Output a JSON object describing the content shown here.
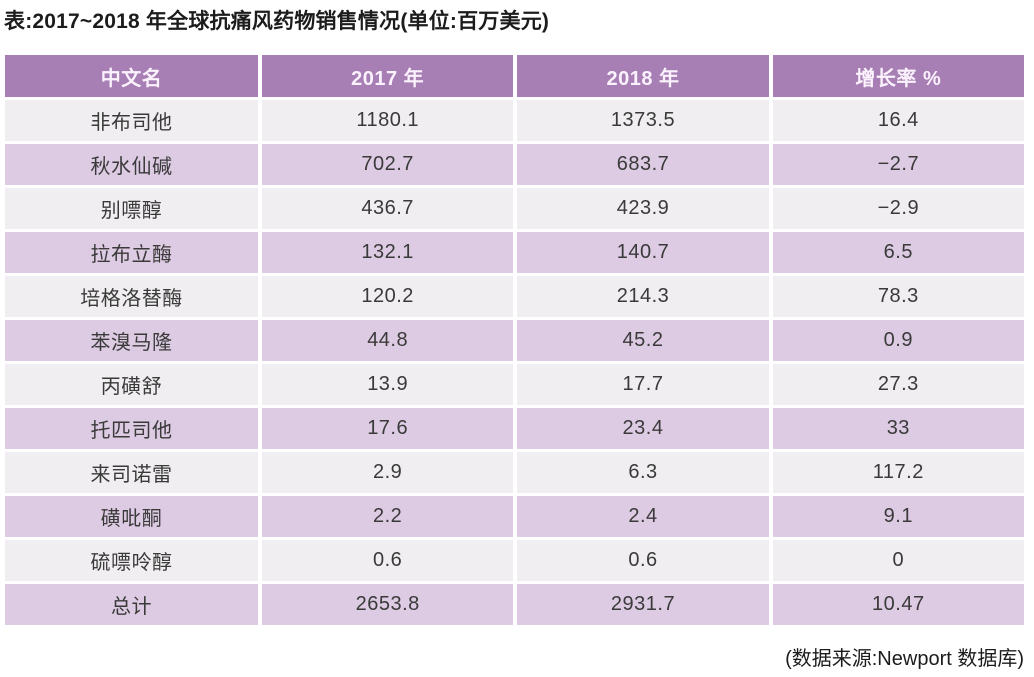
{
  "title": "表:2017~2018 年全球抗痛风药物销售情况(单位:百万美元)",
  "source_note": "(数据来源:Newport 数据库)",
  "colors": {
    "header_bg": "#a77fb4",
    "row_alt_purple": "#ddcbe3",
    "row_alt_gray": "#f0eef0",
    "header_text": "#fbf2fd",
    "cell_text": "#3a3a3a"
  },
  "chart_data": {
    "type": "table",
    "title": "表:2017~2018 年全球抗痛风药物销售情况(单位:百万美元)",
    "columns": [
      "中文名",
      "2017 年",
      "2018 年",
      "增长率 %"
    ],
    "rows": [
      [
        "非布司他",
        "1180.1",
        "1373.5",
        "16.4"
      ],
      [
        "秋水仙碱",
        "702.7",
        "683.7",
        "−2.7"
      ],
      [
        "别嘌醇",
        "436.7",
        "423.9",
        "−2.9"
      ],
      [
        "拉布立酶",
        "132.1",
        "140.7",
        "6.5"
      ],
      [
        "培格洛替酶",
        "120.2",
        "214.3",
        "78.3"
      ],
      [
        "苯溴马隆",
        "44.8",
        "45.2",
        "0.9"
      ],
      [
        "丙磺舒",
        "13.9",
        "17.7",
        "27.3"
      ],
      [
        "托匹司他",
        "17.6",
        "23.4",
        "33"
      ],
      [
        "来司诺雷",
        "2.9",
        "6.3",
        "117.2"
      ],
      [
        "磺吡酮",
        "2.2",
        "2.4",
        "9.1"
      ],
      [
        "硫嘌呤醇",
        "0.6",
        "0.6",
        "0"
      ],
      [
        "总计",
        "2653.8",
        "2931.7",
        "10.47"
      ]
    ],
    "source_note": "(数据来源:Newport 数据库)"
  }
}
